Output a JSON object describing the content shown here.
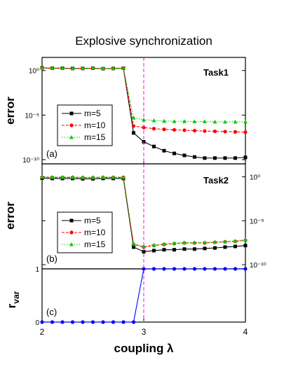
{
  "title": "Explosive synchronization",
  "xlabel": "coupling λ",
  "x_ticks": [
    "2",
    "3",
    "4"
  ],
  "colors": {
    "m5": "#000000",
    "m10": "#ff0000",
    "m15": "#00cc00",
    "rvar": "#0000ff",
    "threshold": "#ff00ff"
  },
  "chart_data": [
    {
      "type": "line",
      "panel": "(a)",
      "task": "Task1",
      "ylabel": "error",
      "yscale": "log",
      "ylim": [
        1e-10,
        10
      ],
      "y_ticks": [
        "10⁰",
        "10⁻⁵",
        "10⁻¹⁰"
      ],
      "y_tick_values": [
        1,
        1e-05,
        1e-10
      ],
      "xlim": [
        2,
        4
      ],
      "x": [
        2.0,
        2.1,
        2.2,
        2.3,
        2.4,
        2.5,
        2.6,
        2.7,
        2.8,
        2.9,
        3.0,
        3.1,
        3.2,
        3.3,
        3.4,
        3.5,
        3.6,
        3.7,
        3.8,
        3.9,
        4.0
      ],
      "series": [
        {
          "name": "m=5",
          "key": "m5",
          "marker": "square",
          "dash": "solid",
          "values": [
            2,
            1.8,
            1.8,
            1.7,
            1.7,
            1.8,
            1.6,
            1.7,
            1.8,
            1e-07,
            1e-08,
            3e-09,
            1e-09,
            5e-10,
            3e-10,
            2e-10,
            1.5e-10,
            1.5e-10,
            1.5e-10,
            1.5e-10,
            1.8e-10
          ]
        },
        {
          "name": "m=10",
          "key": "m10",
          "marker": "circle",
          "dash": "dashed",
          "values": [
            2,
            1.8,
            1.8,
            1.7,
            1.7,
            1.8,
            1.6,
            1.7,
            1.8,
            6e-07,
            4e-07,
            3e-07,
            2.5e-07,
            2.2e-07,
            2e-07,
            1.8e-07,
            1.6e-07,
            1.5e-07,
            1.4e-07,
            1.3e-07,
            1.2e-07
          ]
        },
        {
          "name": "m=15",
          "key": "m15",
          "marker": "triangle",
          "dash": "dotted",
          "values": [
            2,
            1.9,
            1.9,
            1.8,
            1.8,
            1.9,
            1.7,
            1.8,
            1.9,
            5e-06,
            3e-06,
            2.5e-06,
            2.2e-06,
            2e-06,
            2e-06,
            1.9e-06,
            1.9e-06,
            1.8e-06,
            1.8e-06,
            1.8e-06,
            1.8e-06
          ]
        }
      ]
    },
    {
      "type": "line",
      "panel": "(b)",
      "task": "Task2",
      "ylabel": "error",
      "yscale": "log",
      "ylim": [
        1e-10,
        10
      ],
      "y_ticks": [
        "10⁰",
        "10⁻⁵",
        "10⁻¹⁰"
      ],
      "y_tick_values": [
        1,
        1e-05,
        1e-10
      ],
      "y_axis_side": "right",
      "xlim": [
        2,
        4
      ],
      "x": [
        2.0,
        2.1,
        2.2,
        2.3,
        2.4,
        2.5,
        2.6,
        2.7,
        2.8,
        2.9,
        3.0,
        3.1,
        3.2,
        3.3,
        3.4,
        3.5,
        3.6,
        3.7,
        3.8,
        3.9,
        4.0
      ],
      "series": [
        {
          "name": "m=5",
          "key": "m5",
          "marker": "square",
          "dash": "solid",
          "values": [
            0.7,
            0.65,
            0.65,
            0.65,
            0.6,
            0.6,
            0.65,
            0.65,
            0.65,
            1e-08,
            3e-09,
            4e-09,
            5e-09,
            5e-09,
            6e-09,
            6e-09,
            7e-09,
            8e-09,
            1e-08,
            1.2e-08,
            1.5e-08
          ]
        },
        {
          "name": "m=10",
          "key": "m10",
          "marker": "circle",
          "dash": "dashed",
          "values": [
            0.9,
            0.85,
            0.85,
            0.85,
            0.8,
            0.8,
            0.85,
            0.85,
            0.85,
            2e-08,
            1e-08,
            1.5e-08,
            2e-08,
            2.5e-08,
            3e-08,
            3e-08,
            3e-08,
            3.5e-08,
            4e-08,
            4.5e-08,
            6e-08
          ]
        },
        {
          "name": "m=15",
          "key": "m15",
          "marker": "triangle",
          "dash": "dotted",
          "values": [
            1.0,
            0.95,
            0.95,
            0.95,
            0.9,
            0.9,
            0.95,
            0.95,
            0.95,
            2.5e-08,
            1.2e-08,
            1.8e-08,
            2.2e-08,
            2.8e-08,
            3.2e-08,
            3.3e-08,
            3.4e-08,
            3.8e-08,
            4.2e-08,
            5e-08,
            7e-08
          ]
        }
      ]
    },
    {
      "type": "line",
      "panel": "(c)",
      "ylabel": "r",
      "ylabel_sub": "var",
      "ylim": [
        0,
        1
      ],
      "y_ticks": [
        "0",
        "1"
      ],
      "y_tick_values": [
        0,
        1
      ],
      "xlim": [
        2,
        4
      ],
      "x": [
        2.0,
        2.1,
        2.2,
        2.3,
        2.4,
        2.5,
        2.6,
        2.7,
        2.8,
        2.9,
        3.0,
        3.1,
        3.2,
        3.3,
        3.4,
        3.5,
        3.6,
        3.7,
        3.8,
        3.9,
        4.0
      ],
      "series": [
        {
          "key": "rvar",
          "marker": "circle",
          "dash": "solid",
          "values": [
            0,
            0,
            0,
            0,
            0,
            0,
            0,
            0,
            0,
            0,
            1,
            1,
            1,
            1,
            1,
            1,
            1,
            1,
            1,
            1,
            1
          ]
        }
      ]
    }
  ],
  "threshold_x": 3
}
